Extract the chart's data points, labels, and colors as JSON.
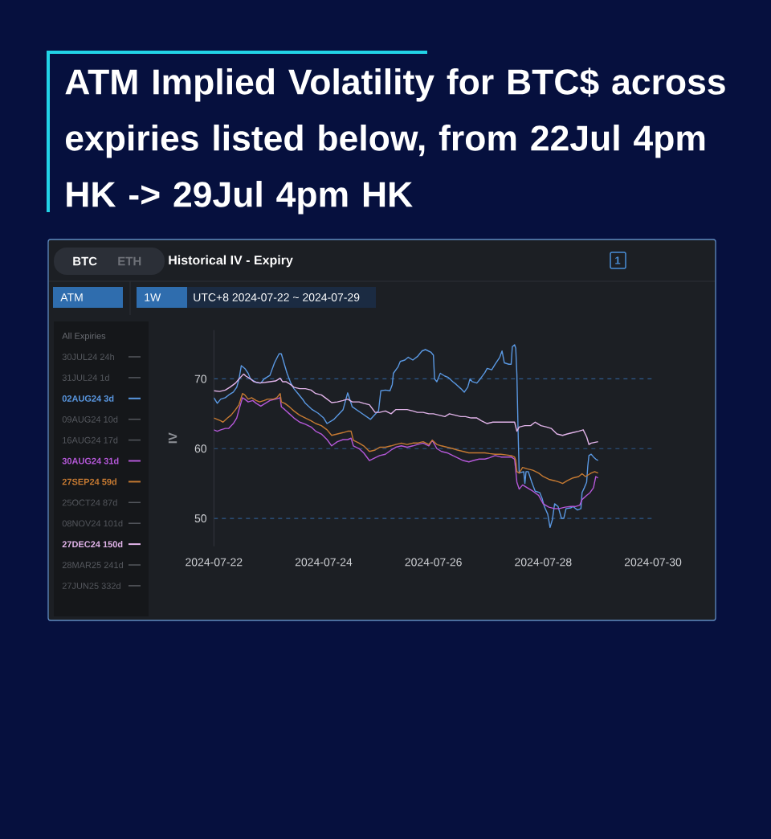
{
  "chart_data": {
    "type": "line",
    "title": "ATM Implied Volatility for BTC$ across expiries listed below, from 22Jul 4pm HK -> 29Jul 4pm HK",
    "subtitle": "Historical IV - Expiry",
    "ylabel": "IV",
    "legend_title": "All Expiries",
    "annotations": [
      "BTC",
      "ETH",
      "1",
      "ATM",
      "1W",
      "UTC+8 2024-07-22 ~ 2024-07-29"
    ],
    "xlim": [
      "2024-07-22",
      "2024-07-30"
    ],
    "xticks": [
      "2024-07-22",
      "2024-07-24",
      "2024-07-26",
      "2024-07-28",
      "2024-07-30"
    ],
    "ylim": [
      46,
      77
    ],
    "yticks": [
      50,
      60,
      70
    ],
    "grid": "y",
    "legend": "left",
    "series": [
      {
        "name": "30JUL24 24h",
        "color": "#55585e"
      },
      {
        "name": "31JUL24 1d",
        "color": "#55585e"
      },
      {
        "name": "02AUG24 3d",
        "color": "#5a98e2",
        "x": [
          "2024-07-22T00:00",
          "2024-07-22T01:30",
          "2024-07-22T03:00",
          "2024-07-22T05:00",
          "2024-07-22T06:30",
          "2024-07-22T08:30",
          "2024-07-22T10:00",
          "2024-07-22T11:00",
          "2024-07-22T12:00",
          "2024-07-22T13:30",
          "2024-07-22T15:00",
          "2024-07-22T16:00",
          "2024-07-22T18:30",
          "2024-07-22T20:30",
          "2024-07-22T22:00",
          "2024-07-23T00:30",
          "2024-07-23T02:30",
          "2024-07-23T04:30",
          "2024-07-23T05:30",
          "2024-07-23T07:00",
          "2024-07-23T08:00",
          "2024-07-23T09:30",
          "2024-07-23T11:00",
          "2024-07-23T13:00",
          "2024-07-23T15:00",
          "2024-07-23T16:00",
          "2024-07-23T19:00",
          "2024-07-23T21:30",
          "2024-07-24T00:00",
          "2024-07-24T01:30",
          "2024-07-24T04:30",
          "2024-07-24T08:30",
          "2024-07-24T09:30",
          "2024-07-24T10:30",
          "2024-07-24T12:30",
          "2024-07-24T16:30",
          "2024-07-24T20:30",
          "2024-07-24T23:00",
          "2024-07-25T00:00",
          "2024-07-25T01:00",
          "2024-07-25T03:00",
          "2024-07-25T05:00",
          "2024-07-25T06:00",
          "2024-07-25T06:30",
          "2024-07-25T08:30",
          "2024-07-25T09:30",
          "2024-07-25T11:30",
          "2024-07-25T13:00",
          "2024-07-25T15:00",
          "2024-07-25T17:00",
          "2024-07-25T19:00",
          "2024-07-25T20:30",
          "2024-07-25T23:00",
          "2024-07-26T00:00",
          "2024-07-26T00:30",
          "2024-07-26T01:30",
          "2024-07-26T03:00",
          "2024-07-26T05:00",
          "2024-07-26T06:30",
          "2024-07-26T08:30",
          "2024-07-26T10:00",
          "2024-07-26T12:00",
          "2024-07-26T13:30",
          "2024-07-26T15:00",
          "2024-07-26T16:00",
          "2024-07-26T17:00",
          "2024-07-26T19:00",
          "2024-07-26T20:30",
          "2024-07-26T22:30",
          "2024-07-26T23:30",
          "2024-07-27T01:30",
          "2024-07-27T03:00",
          "2024-07-27T05:00",
          "2024-07-27T06:00",
          "2024-07-27T07:00",
          "2024-07-27T09:00",
          "2024-07-27T10:00",
          "2024-07-27T10:30",
          "2024-07-27T11:30",
          "2024-07-27T12:00",
          "2024-07-27T12:30",
          "2024-07-27T13:00",
          "2024-07-27T13:30",
          "2024-07-27T15:30",
          "2024-07-27T16:00",
          "2024-07-27T16:30",
          "2024-07-27T17:30",
          "2024-07-27T19:00",
          "2024-07-27T20:30",
          "2024-07-27T22:30",
          "2024-07-27T23:30",
          "2024-07-28T00:30",
          "2024-07-28T02:00",
          "2024-07-28T03:00",
          "2024-07-28T04:00",
          "2024-07-28T05:00",
          "2024-07-28T06:30",
          "2024-07-28T08:00",
          "2024-07-28T09:00",
          "2024-07-28T10:00",
          "2024-07-28T12:00",
          "2024-07-28T13:00",
          "2024-07-28T15:00",
          "2024-07-28T16:30",
          "2024-07-28T17:00",
          "2024-07-28T18:00",
          "2024-07-28T19:00",
          "2024-07-28T19:30",
          "2024-07-28T20:00",
          "2024-07-28T21:00",
          "2024-07-28T22:00",
          "2024-07-28T23:00",
          "2024-07-29T00:00"
        ],
        "values": [
          67.3,
          66.5,
          67.1,
          67.3,
          67.7,
          68.1,
          68.8,
          70.0,
          71.9,
          71.5,
          70.8,
          70.0,
          69.5,
          69.4,
          70.0,
          70.5,
          72.3,
          73.6,
          73.6,
          71.9,
          70.8,
          69.5,
          68.6,
          67.8,
          67.0,
          66.5,
          65.6,
          65.1,
          64.4,
          63.6,
          64.2,
          65.6,
          66.8,
          68.0,
          66.0,
          65.1,
          64.2,
          65.1,
          65.4,
          68.3,
          68.4,
          68.3,
          69.2,
          70.8,
          71.7,
          72.5,
          72.7,
          73.1,
          72.7,
          73.2,
          74.0,
          74.2,
          73.8,
          73.4,
          70.0,
          69.6,
          70.8,
          70.4,
          70.2,
          69.6,
          69.2,
          68.6,
          68.1,
          68.8,
          70.0,
          69.6,
          69.4,
          70.0,
          70.9,
          71.5,
          71.3,
          72.1,
          73.1,
          74.0,
          72.3,
          72.1,
          72.1,
          74.6,
          74.9,
          74.4,
          70.6,
          62.9,
          56.5,
          56.7,
          55.0,
          56.7,
          56.7,
          55.2,
          53.9,
          53.7,
          52.9,
          51.7,
          50.6,
          48.7,
          49.8,
          52.1,
          51.7,
          50.0,
          50.0,
          51.4,
          51.5,
          51.7,
          51.2,
          51.4,
          53.7,
          54.4,
          55.2,
          57.5,
          59.0,
          59.2,
          58.8,
          58.5,
          58.3
        ]
      },
      {
        "name": "09AUG24 10d",
        "color": "#55585e"
      },
      {
        "name": "16AUG24 17d",
        "color": "#55585e"
      },
      {
        "name": "30AUG24 31d",
        "color": "#b458d8",
        "x": [
          "2024-07-22T00:00",
          "2024-07-22T01:30",
          "2024-07-22T03:00",
          "2024-07-22T05:00",
          "2024-07-22T06:30",
          "2024-07-22T08:30",
          "2024-07-22T10:00",
          "2024-07-22T11:00",
          "2024-07-22T12:30",
          "2024-07-22T13:30",
          "2024-07-22T15:00",
          "2024-07-22T17:00",
          "2024-07-22T18:30",
          "2024-07-22T20:30",
          "2024-07-22T22:30",
          "2024-07-23T00:30",
          "2024-07-23T03:00",
          "2024-07-23T05:00",
          "2024-07-23T05:30",
          "2024-07-23T07:00",
          "2024-07-23T09:00",
          "2024-07-23T11:00",
          "2024-07-23T13:30",
          "2024-07-23T16:00",
          "2024-07-23T18:30",
          "2024-07-23T20:30",
          "2024-07-23T23:00",
          "2024-07-24T01:30",
          "2024-07-24T03:30",
          "2024-07-24T06:00",
          "2024-07-24T08:30",
          "2024-07-24T10:30",
          "2024-07-24T12:00",
          "2024-07-24T13:00",
          "2024-07-24T15:30",
          "2024-07-24T17:30",
          "2024-07-24T20:00",
          "2024-07-24T22:30",
          "2024-07-25T00:30",
          "2024-07-25T03:00",
          "2024-07-25T05:30",
          "2024-07-25T07:30",
          "2024-07-25T10:00",
          "2024-07-25T12:30",
          "2024-07-25T15:00",
          "2024-07-25T17:00",
          "2024-07-25T19:30",
          "2024-07-25T22:00",
          "2024-07-25T23:30",
          "2024-07-26T01:30",
          "2024-07-26T03:30",
          "2024-07-26T06:00",
          "2024-07-26T08:30",
          "2024-07-26T10:30",
          "2024-07-26T13:00",
          "2024-07-26T15:30",
          "2024-07-26T17:30",
          "2024-07-26T20:00",
          "2024-07-26T22:30",
          "2024-07-27T00:30",
          "2024-07-27T03:00",
          "2024-07-27T05:30",
          "2024-07-27T08:00",
          "2024-07-27T10:00",
          "2024-07-27T11:30",
          "2024-07-27T12:30",
          "2024-07-27T13:30",
          "2024-07-27T15:00",
          "2024-07-27T17:00",
          "2024-07-27T19:30",
          "2024-07-27T22:00",
          "2024-07-28T00:00",
          "2024-07-28T02:30",
          "2024-07-28T05:00",
          "2024-07-28T07:00",
          "2024-07-28T09:30",
          "2024-07-28T12:00",
          "2024-07-28T14:00",
          "2024-07-28T16:00",
          "2024-07-28T17:00",
          "2024-07-28T19:00",
          "2024-07-28T20:30",
          "2024-07-28T22:00",
          "2024-07-28T23:00",
          "2024-07-29T00:00"
        ],
        "values": [
          62.7,
          62.5,
          62.7,
          62.9,
          62.9,
          63.6,
          64.4,
          65.6,
          67.3,
          67.1,
          66.7,
          66.9,
          66.5,
          66.1,
          66.5,
          66.9,
          67.1,
          67.3,
          66.0,
          65.6,
          65.0,
          64.4,
          63.8,
          63.5,
          63.1,
          62.5,
          62.1,
          61.3,
          60.4,
          61.0,
          61.3,
          61.3,
          61.5,
          60.4,
          60.0,
          59.4,
          58.3,
          58.7,
          59.0,
          59.2,
          59.8,
          60.2,
          60.4,
          60.2,
          60.4,
          60.6,
          60.8,
          60.4,
          61.2,
          60.0,
          59.6,
          59.4,
          59.0,
          58.7,
          58.3,
          58.1,
          58.3,
          58.5,
          58.5,
          58.7,
          59.0,
          58.8,
          58.8,
          58.8,
          58.5,
          55.2,
          54.2,
          54.8,
          54.4,
          53.9,
          53.3,
          52.1,
          51.6,
          51.4,
          51.4,
          51.6,
          51.7,
          51.7,
          51.9,
          52.7,
          53.3,
          53.7,
          54.4,
          56.0,
          55.8
        ]
      },
      {
        "name": "27SEP24 59d",
        "color": "#c67a32",
        "x": [
          "2024-07-22T00:00",
          "2024-07-22T01:30",
          "2024-07-22T03:00",
          "2024-07-22T04:00",
          "2024-07-22T06:00",
          "2024-07-22T07:30",
          "2024-07-22T09:30",
          "2024-07-22T11:00",
          "2024-07-22T12:30",
          "2024-07-22T13:30",
          "2024-07-22T15:00",
          "2024-07-22T16:30",
          "2024-07-22T18:30",
          "2024-07-22T20:00",
          "2024-07-22T22:00",
          "2024-07-22T23:30",
          "2024-07-23T02:00",
          "2024-07-23T03:30",
          "2024-07-23T05:00",
          "2024-07-23T05:30",
          "2024-07-23T07:00",
          "2024-07-23T09:00",
          "2024-07-23T11:00",
          "2024-07-23T13:30",
          "2024-07-23T16:00",
          "2024-07-23T18:30",
          "2024-07-23T20:30",
          "2024-07-23T23:00",
          "2024-07-24T01:30",
          "2024-07-24T03:30",
          "2024-07-24T06:00",
          "2024-07-24T08:30",
          "2024-07-24T10:30",
          "2024-07-24T12:00",
          "2024-07-24T13:00",
          "2024-07-24T15:30",
          "2024-07-24T17:30",
          "2024-07-24T20:00",
          "2024-07-24T22:30",
          "2024-07-25T00:30",
          "2024-07-25T03:00",
          "2024-07-25T05:30",
          "2024-07-25T07:30",
          "2024-07-25T10:00",
          "2024-07-25T12:30",
          "2024-07-25T15:00",
          "2024-07-25T17:00",
          "2024-07-25T19:30",
          "2024-07-25T22:00",
          "2024-07-25T23:30",
          "2024-07-26T01:30",
          "2024-07-26T03:30",
          "2024-07-26T06:00",
          "2024-07-26T08:30",
          "2024-07-26T10:30",
          "2024-07-26T13:00",
          "2024-07-26T15:30",
          "2024-07-26T17:30",
          "2024-07-26T20:00",
          "2024-07-26T22:30",
          "2024-07-27T00:30",
          "2024-07-27T03:00",
          "2024-07-27T05:30",
          "2024-07-27T08:00",
          "2024-07-27T10:00",
          "2024-07-27T11:30",
          "2024-07-27T12:00",
          "2024-07-27T12:30",
          "2024-07-27T13:30",
          "2024-07-27T15:00",
          "2024-07-27T17:00",
          "2024-07-27T19:30",
          "2024-07-27T22:00",
          "2024-07-28T00:00",
          "2024-07-28T02:30",
          "2024-07-28T05:00",
          "2024-07-28T07:00",
          "2024-07-28T08:30",
          "2024-07-28T10:30",
          "2024-07-28T13:00",
          "2024-07-28T15:30",
          "2024-07-28T17:00",
          "2024-07-28T18:30",
          "2024-07-28T19:30",
          "2024-07-28T21:00",
          "2024-07-28T22:30",
          "2024-07-29T00:00"
        ],
        "values": [
          64.4,
          64.2,
          64.0,
          63.8,
          64.4,
          64.8,
          65.6,
          66.3,
          67.9,
          67.7,
          67.1,
          67.3,
          66.9,
          66.7,
          66.9,
          67.1,
          67.1,
          67.3,
          67.9,
          66.7,
          66.5,
          66.0,
          65.4,
          64.8,
          64.4,
          64.0,
          63.6,
          63.3,
          62.7,
          61.9,
          62.1,
          62.3,
          62.5,
          62.5,
          61.2,
          60.8,
          60.4,
          59.6,
          59.8,
          60.2,
          60.2,
          60.4,
          60.6,
          60.8,
          60.6,
          60.8,
          60.8,
          61.0,
          60.6,
          61.2,
          60.6,
          60.4,
          60.2,
          60.0,
          59.8,
          59.6,
          59.4,
          59.4,
          59.4,
          59.4,
          59.3,
          59.2,
          59.2,
          59.1,
          59.0,
          58.8,
          58.3,
          56.7,
          56.5,
          57.3,
          57.1,
          56.9,
          56.5,
          56.0,
          55.6,
          55.4,
          55.2,
          55.0,
          55.4,
          55.8,
          56.0,
          56.4,
          56.0,
          56.2,
          56.5,
          56.7,
          56.5
        ]
      },
      {
        "name": "25OCT24 87d",
        "color": "#55585e"
      },
      {
        "name": "08NOV24 101d",
        "color": "#55585e"
      },
      {
        "name": "27DEC24 150d",
        "color": "#e2b4ea",
        "x": [
          "2024-07-22T00:00",
          "2024-07-22T02:30",
          "2024-07-22T05:00",
          "2024-07-22T07:00",
          "2024-07-22T09:30",
          "2024-07-22T11:00",
          "2024-07-22T13:00",
          "2024-07-22T14:00",
          "2024-07-22T16:00",
          "2024-07-22T17:30",
          "2024-07-22T20:00",
          "2024-07-22T22:30",
          "2024-07-23T00:30",
          "2024-07-23T03:00",
          "2024-07-23T05:00",
          "2024-07-23T06:00",
          "2024-07-23T07:30",
          "2024-07-23T09:30",
          "2024-07-23T11:00",
          "2024-07-23T13:30",
          "2024-07-23T16:00",
          "2024-07-23T18:30",
          "2024-07-23T20:30",
          "2024-07-23T23:00",
          "2024-07-24T01:30",
          "2024-07-24T03:30",
          "2024-07-24T06:00",
          "2024-07-24T08:30",
          "2024-07-24T10:30",
          "2024-07-24T12:30",
          "2024-07-24T15:30",
          "2024-07-24T17:30",
          "2024-07-24T20:00",
          "2024-07-24T22:30",
          "2024-07-25T00:30",
          "2024-07-25T03:00",
          "2024-07-25T05:30",
          "2024-07-25T07:30",
          "2024-07-25T10:00",
          "2024-07-25T12:30",
          "2024-07-25T15:00",
          "2024-07-25T17:00",
          "2024-07-25T19:30",
          "2024-07-25T22:00",
          "2024-07-26T00:00",
          "2024-07-26T02:30",
          "2024-07-26T05:00",
          "2024-07-26T07:00",
          "2024-07-26T09:30",
          "2024-07-26T12:00",
          "2024-07-26T14:00",
          "2024-07-26T16:30",
          "2024-07-26T19:00",
          "2024-07-26T21:00",
          "2024-07-26T23:30",
          "2024-07-27T02:00",
          "2024-07-27T04:30",
          "2024-07-27T06:30",
          "2024-07-27T09:00",
          "2024-07-27T11:30",
          "2024-07-27T12:30",
          "2024-07-27T13:30",
          "2024-07-27T16:00",
          "2024-07-27T18:30",
          "2024-07-27T20:30",
          "2024-07-27T23:00",
          "2024-07-28T01:30",
          "2024-07-28T03:30",
          "2024-07-28T06:00",
          "2024-07-28T08:30",
          "2024-07-28T10:30",
          "2024-07-28T13:00",
          "2024-07-28T15:30",
          "2024-07-28T17:30",
          "2024-07-28T19:00",
          "2024-07-28T20:00",
          "2024-07-28T21:00",
          "2024-07-28T22:30",
          "2024-07-29T00:00"
        ],
        "values": [
          68.3,
          68.2,
          68.4,
          68.8,
          69.4,
          70.0,
          70.7,
          70.4,
          70.0,
          69.6,
          69.4,
          69.5,
          69.6,
          69.7,
          70.1,
          69.6,
          69.6,
          69.2,
          68.8,
          68.6,
          68.6,
          68.4,
          67.9,
          67.7,
          67.1,
          66.6,
          66.7,
          66.9,
          67.1,
          66.7,
          66.7,
          66.5,
          66.3,
          65.2,
          65.2,
          65.4,
          65.0,
          65.6,
          65.6,
          65.6,
          65.4,
          65.2,
          65.2,
          65.0,
          65.0,
          64.8,
          64.6,
          65.0,
          64.8,
          64.6,
          64.6,
          64.4,
          64.4,
          64.0,
          63.6,
          63.8,
          63.8,
          63.8,
          63.8,
          63.8,
          62.5,
          63.1,
          63.3,
          63.3,
          63.8,
          63.3,
          63.1,
          62.9,
          62.1,
          61.9,
          62.1,
          62.3,
          62.5,
          62.7,
          61.7,
          60.6,
          60.8,
          60.9,
          61.0
        ]
      },
      {
        "name": "28MAR25 241d",
        "color": "#55585e"
      },
      {
        "name": "27JUN25 332d",
        "color": "#55585e"
      }
    ]
  }
}
